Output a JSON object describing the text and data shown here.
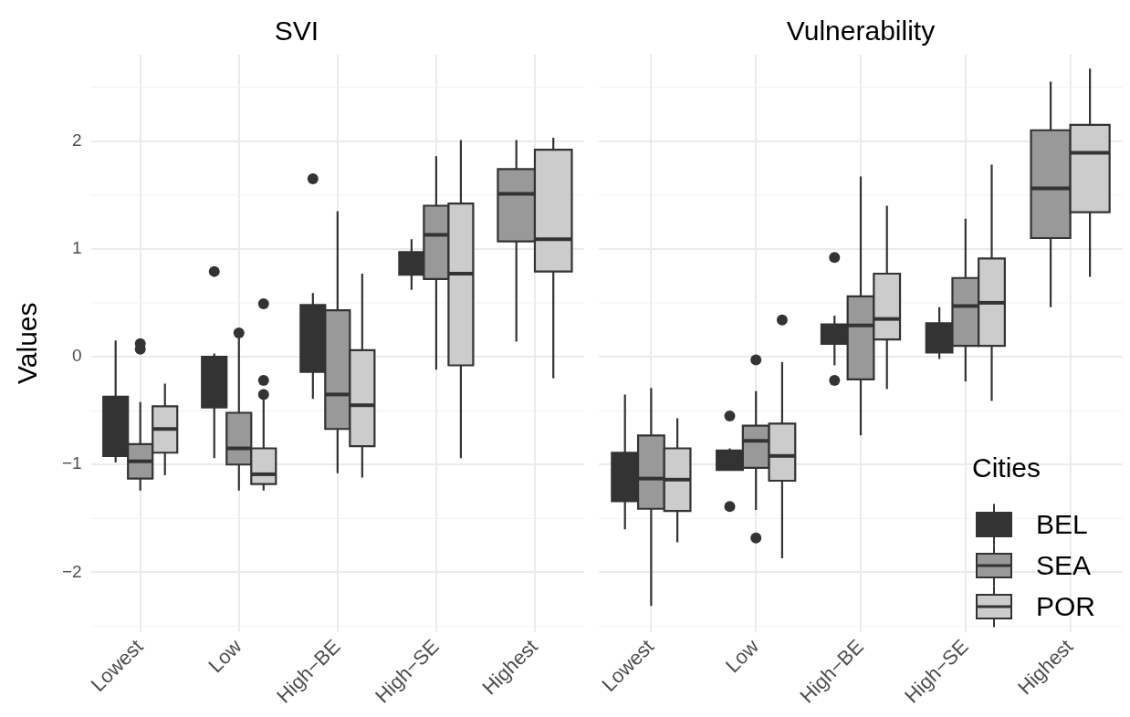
{
  "chart_data": [
    {
      "type": "box",
      "title": "SVI",
      "ylabel": "Values",
      "categories": [
        "Lowest",
        "Low",
        "High−BE",
        "High−SE",
        "Highest"
      ],
      "ylim": [
        -2.55,
        2.8
      ],
      "yticks": [
        {
          "value": -2,
          "label": "−2"
        },
        {
          "value": -1,
          "label": "−1"
        },
        0,
        1,
        2
      ],
      "grid": true,
      "legend": false,
      "series": [
        {
          "color": "#333333",
          "boxes": [
            {
              "low": -0.98,
              "q1": -0.92,
              "median": -0.85,
              "q3": -0.37,
              "high": 0.15
            },
            {
              "low": -0.94,
              "q1": -0.47,
              "median": -0.2,
              "q3": 0.0,
              "high": 0.03,
              "outliers": [
                0.79
              ]
            },
            {
              "low": -0.39,
              "q1": -0.14,
              "median": 0.2,
              "q3": 0.48,
              "high": 0.59,
              "outliers": [
                1.65
              ]
            },
            {
              "low": 0.62,
              "q1": 0.76,
              "median": 0.85,
              "q3": 0.97,
              "high": 1.09
            },
            null
          ]
        },
        {
          "color": "#999999",
          "boxes": [
            {
              "low": -1.24,
              "q1": -1.13,
              "median": -0.97,
              "q3": -0.81,
              "high": -0.42,
              "outliers": [
                0.12,
                0.07
              ]
            },
            {
              "low": -1.24,
              "q1": -1.0,
              "median": -0.85,
              "q3": -0.52,
              "high": 0.18,
              "outliers": [
                0.22
              ]
            },
            {
              "low": -1.08,
              "q1": -0.67,
              "median": -0.35,
              "q3": 0.43,
              "high": 1.35
            },
            {
              "low": -0.12,
              "q1": 0.72,
              "median": 1.13,
              "q3": 1.4,
              "high": 1.86
            },
            {
              "low": 0.14,
              "q1": 1.07,
              "median": 1.51,
              "q3": 1.74,
              "high": 2.01
            }
          ]
        },
        {
          "color": "#cccccc",
          "boxes": [
            {
              "low": -1.1,
              "q1": -0.89,
              "median": -0.67,
              "q3": -0.46,
              "high": -0.25
            },
            {
              "low": -1.24,
              "q1": -1.18,
              "median": -1.09,
              "q3": -0.85,
              "high": -0.39,
              "outliers": [
                0.49,
                -0.22,
                -0.35
              ]
            },
            {
              "low": -1.12,
              "q1": -0.83,
              "median": -0.45,
              "q3": 0.06,
              "high": 0.77
            },
            {
              "low": -0.94,
              "q1": -0.08,
              "median": 0.77,
              "q3": 1.42,
              "high": 2.01
            },
            {
              "low": -0.2,
              "q1": 0.79,
              "median": 1.09,
              "q3": 1.92,
              "high": 2.03
            }
          ]
        }
      ]
    },
    {
      "type": "box",
      "title": "Vulnerability",
      "legend_title": "Cities",
      "categories": [
        "Lowest",
        "Low",
        "High−BE",
        "High−SE",
        "Highest"
      ],
      "ylim": [
        -2.55,
        2.8
      ],
      "yticks": [
        -2,
        -1,
        0,
        1,
        2
      ],
      "grid": true,
      "legend": "bottom right",
      "tick_labels": "x",
      "series": [
        {
          "name": "BEL",
          "color": "#333333",
          "boxes": [
            {
              "low": -1.6,
              "q1": -1.34,
              "median": -1.1,
              "q3": -0.89,
              "high": -0.35
            },
            {
              "low": -1.05,
              "q1": -1.05,
              "median": -0.95,
              "q3": -0.87,
              "high": -0.85,
              "outliers": [
                -0.55,
                -1.39
              ]
            },
            {
              "low": -0.08,
              "q1": 0.12,
              "median": 0.2,
              "q3": 0.3,
              "high": 0.38,
              "outliers": [
                0.92,
                -0.22
              ]
            },
            {
              "low": -0.02,
              "q1": 0.04,
              "median": 0.2,
              "q3": 0.31,
              "high": 0.46
            },
            null
          ]
        },
        {
          "name": "SEA",
          "color": "#999999",
          "boxes": [
            {
              "low": -2.31,
              "q1": -1.41,
              "median": -1.13,
              "q3": -0.73,
              "high": -0.29
            },
            {
              "low": -1.42,
              "q1": -1.03,
              "median": -0.78,
              "q3": -0.64,
              "high": -0.32,
              "outliers": [
                -0.03,
                -1.68
              ]
            },
            {
              "low": -0.73,
              "q1": -0.21,
              "median": 0.29,
              "q3": 0.56,
              "high": 1.67
            },
            {
              "low": -0.23,
              "q1": 0.1,
              "median": 0.47,
              "q3": 0.73,
              "high": 1.28
            },
            {
              "low": 0.46,
              "q1": 1.1,
              "median": 1.56,
              "q3": 2.1,
              "high": 2.55
            }
          ]
        },
        {
          "name": "POR",
          "color": "#cccccc",
          "boxes": [
            {
              "low": -1.72,
              "q1": -1.43,
              "median": -1.14,
              "q3": -0.85,
              "high": -0.57
            },
            {
              "low": -1.87,
              "q1": -1.15,
              "median": -0.92,
              "q3": -0.62,
              "high": -0.05,
              "outliers": [
                0.34
              ]
            },
            {
              "low": -0.3,
              "q1": 0.16,
              "median": 0.35,
              "q3": 0.77,
              "high": 1.4
            },
            {
              "low": -0.41,
              "q1": 0.1,
              "median": 0.5,
              "q3": 0.91,
              "high": 1.78
            },
            {
              "low": 0.74,
              "q1": 1.34,
              "median": 1.89,
              "q3": 2.15,
              "high": 2.67
            }
          ]
        }
      ]
    }
  ]
}
